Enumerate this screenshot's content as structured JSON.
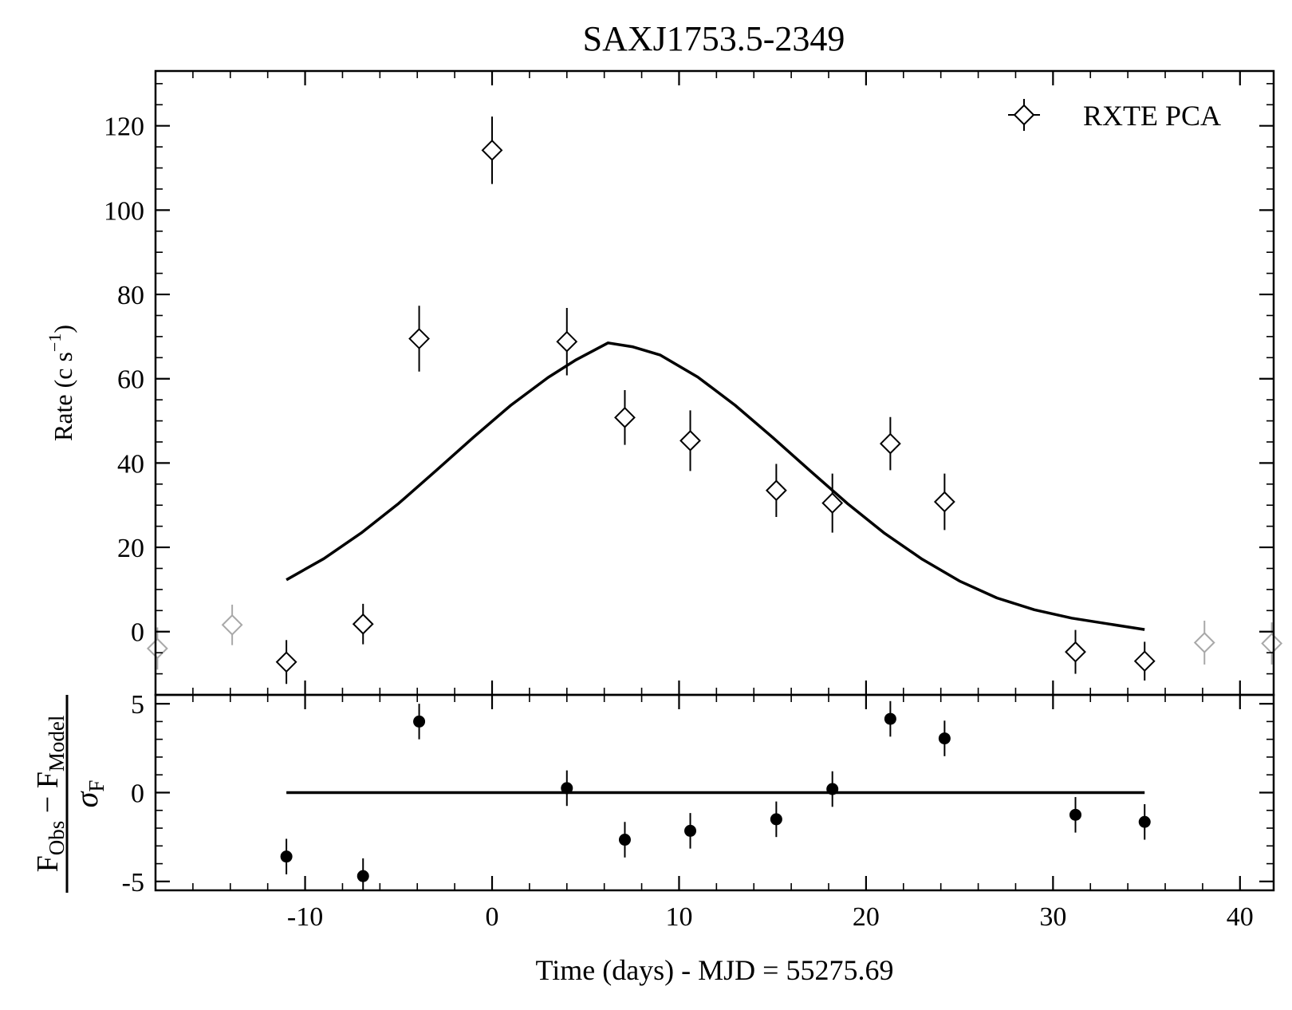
{
  "chart_data": [
    {
      "type": "scatter",
      "panel": "main",
      "title": "SAXJ1753.5-2349",
      "ylabel_main": "Rate (c s",
      "ylabel_sup": "−1",
      "ylabel_close": ")",
      "xlim": [
        -18,
        41.8
      ],
      "ylim": [
        -15,
        133
      ],
      "xticks": [
        -10,
        0,
        10,
        20,
        30,
        40
      ],
      "yticks": [
        0,
        20,
        40,
        60,
        80,
        100,
        120
      ],
      "legend": {
        "label": "RXTE PCA",
        "position": "top-right"
      },
      "series": [
        {
          "name": "RXTE PCA",
          "marker": "open-diamond",
          "color": "#000000",
          "points": [
            {
              "x": -11.0,
              "y": -7.2,
              "err": 5.2
            },
            {
              "x": -6.9,
              "y": 1.8,
              "err": 4.8
            },
            {
              "x": -3.9,
              "y": 69.5,
              "err": 7.8
            },
            {
              "x": 0.0,
              "y": 114.2,
              "err": 8.0
            },
            {
              "x": 4.0,
              "y": 68.8,
              "err": 8.0
            },
            {
              "x": 7.1,
              "y": 50.8,
              "err": 6.5
            },
            {
              "x": 10.6,
              "y": 45.3,
              "err": 7.2
            },
            {
              "x": 15.2,
              "y": 33.5,
              "err": 6.3
            },
            {
              "x": 18.2,
              "y": 30.5,
              "err": 7.0
            },
            {
              "x": 21.3,
              "y": 44.6,
              "err": 6.3
            },
            {
              "x": 24.2,
              "y": 30.8,
              "err": 6.7
            },
            {
              "x": 31.2,
              "y": -4.8,
              "err": 5.2
            },
            {
              "x": 34.9,
              "y": -7.0,
              "err": 4.6
            }
          ]
        },
        {
          "marker": "open-diamond",
          "color": "#a8a8a8",
          "points": [
            {
              "x": -17.9,
              "y": -4.0,
              "err": 5.0
            },
            {
              "x": -13.9,
              "y": 1.6,
              "err": 4.8
            },
            {
              "x": 38.1,
              "y": -2.6,
              "err": 5.2
            },
            {
              "x": 41.7,
              "y": -2.8,
              "err": 5.0
            }
          ]
        }
      ],
      "model_curve": {
        "color": "#000000",
        "points": [
          [
            -11.0,
            12.3
          ],
          [
            -9,
            17.3
          ],
          [
            -7,
            23.4
          ],
          [
            -5,
            30.4
          ],
          [
            -3,
            38.2
          ],
          [
            -1,
            46.1
          ],
          [
            1,
            53.7
          ],
          [
            3,
            60.3
          ],
          [
            4.5,
            64.5
          ],
          [
            6.2,
            68.5
          ],
          [
            7.5,
            67.6
          ],
          [
            9,
            65.6
          ],
          [
            11,
            60.4
          ],
          [
            13,
            53.7
          ],
          [
            15,
            46.1
          ],
          [
            17,
            38.2
          ],
          [
            19,
            30.4
          ],
          [
            21,
            23.3
          ],
          [
            23,
            17.2
          ],
          [
            25,
            12.0
          ],
          [
            27,
            8.0
          ],
          [
            29,
            5.2
          ],
          [
            31,
            3.2
          ],
          [
            33,
            1.8
          ],
          [
            34.9,
            0.5
          ]
        ]
      }
    },
    {
      "type": "scatter",
      "panel": "residuals",
      "xlabel": "Time (days) - MJD = 55275.69",
      "ylabel_numerator": {
        "main1": "F",
        "sub1": "Obs",
        "op": " − ",
        "main2": "F",
        "sub2": "Model"
      },
      "ylabel_denominator": {
        "main": "σ",
        "sub": "F"
      },
      "xlim": [
        -18,
        41.8
      ],
      "ylim": [
        -5.5,
        5.5
      ],
      "xticks": [
        -10,
        0,
        10,
        20,
        30,
        40
      ],
      "xtick_labels": [
        "-10",
        "0",
        "10",
        "20",
        "30",
        "40"
      ],
      "yticks": [
        -5,
        0,
        5
      ],
      "ytick_labels": [
        "-5",
        "0",
        "5"
      ],
      "series": [
        {
          "marker": "filled-circle",
          "color": "#000000",
          "points": [
            {
              "x": -11.0,
              "y": -3.6,
              "err": 1.0
            },
            {
              "x": -6.9,
              "y": -4.7,
              "err": 1.0
            },
            {
              "x": -3.9,
              "y": 4.0,
              "err": 1.0
            },
            {
              "x": 4.0,
              "y": 0.25,
              "err": 1.0
            },
            {
              "x": 7.1,
              "y": -2.65,
              "err": 1.0
            },
            {
              "x": 10.6,
              "y": -2.15,
              "err": 1.0
            },
            {
              "x": 15.2,
              "y": -1.5,
              "err": 1.0
            },
            {
              "x": 18.2,
              "y": 0.2,
              "err": 1.0
            },
            {
              "x": 21.3,
              "y": 4.15,
              "err": 1.0
            },
            {
              "x": 24.2,
              "y": 3.05,
              "err": 1.0
            },
            {
              "x": 31.2,
              "y": -1.25,
              "err": 1.0
            },
            {
              "x": 34.9,
              "y": -1.65,
              "err": 1.0
            }
          ]
        }
      ],
      "zero_line": {
        "x": [
          -11.0,
          34.9
        ],
        "y": 0
      }
    }
  ]
}
